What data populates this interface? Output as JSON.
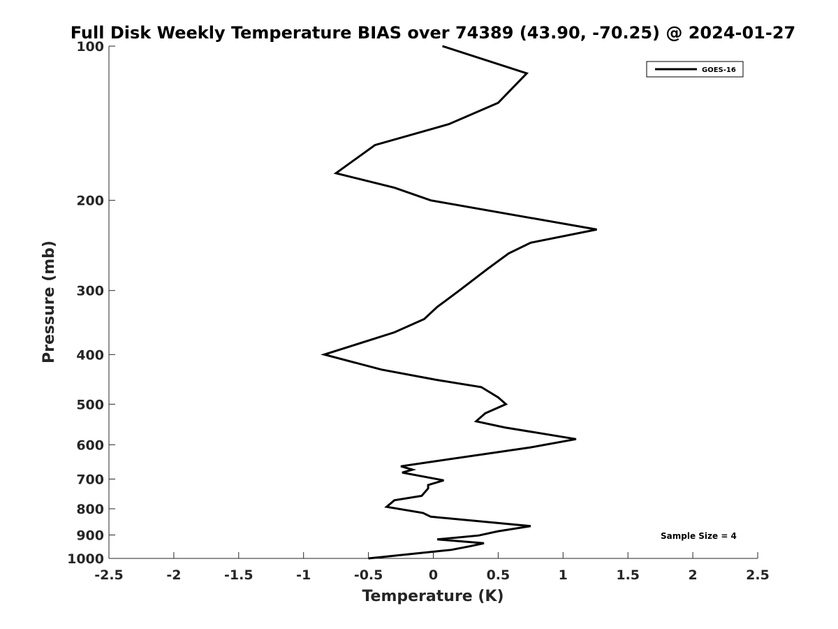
{
  "chart_data": {
    "type": "line",
    "title": "Full Disk Weekly Temperature BIAS over 74389 (43.90, -70.25) @ 2024-01-27",
    "xlabel": "Temperature (K)",
    "ylabel": "Pressure (mb)",
    "xlim": [
      -2.5,
      2.5
    ],
    "ylim": [
      100,
      1000
    ],
    "y_scale": "log",
    "y_reversed": true,
    "grid": false,
    "legend_position": "top-right",
    "x_ticks": [
      "-2.5",
      "-2",
      "-1.5",
      "-1",
      "-0.5",
      "0",
      "0.5",
      "1",
      "1.5",
      "2",
      "2.5"
    ],
    "y_ticks": [
      "100",
      "200",
      "300",
      "400",
      "500",
      "600",
      "700",
      "800",
      "900",
      "1000"
    ],
    "annotation": "Sample Size = 4",
    "line_color": "#000000",
    "series": [
      {
        "name": "GOES-16",
        "x": [
          0.07,
          0.72,
          0.5,
          0.12,
          -0.45,
          -0.75,
          -0.3,
          -0.02,
          1.26,
          0.75,
          0.58,
          0.42,
          0.2,
          0.03,
          -0.07,
          -0.3,
          -0.84,
          -0.4,
          0.02,
          0.37,
          0.5,
          0.56,
          0.4,
          0.33,
          0.55,
          1.1,
          0.75,
          0.0,
          -0.25,
          -0.16,
          -0.24,
          0.08,
          -0.04,
          -0.04,
          -0.09,
          -0.3,
          -0.36,
          -0.08,
          -0.02,
          0.75,
          0.5,
          0.35,
          0.03,
          0.39,
          0.28,
          0.14,
          -0.5
        ],
        "y": [
          100,
          113,
          129,
          142,
          156,
          177,
          189,
          200,
          228,
          242,
          254,
          272,
          300,
          323,
          341,
          362,
          400,
          428,
          448,
          463,
          485,
          500,
          521,
          540,
          555,
          585,
          607,
          647,
          661,
          671,
          680,
          704,
          719,
          730,
          755,
          770,
          793,
          815,
          829,
          865,
          885,
          902,
          918,
          934,
          947,
          962,
          1000
        ]
      }
    ]
  }
}
